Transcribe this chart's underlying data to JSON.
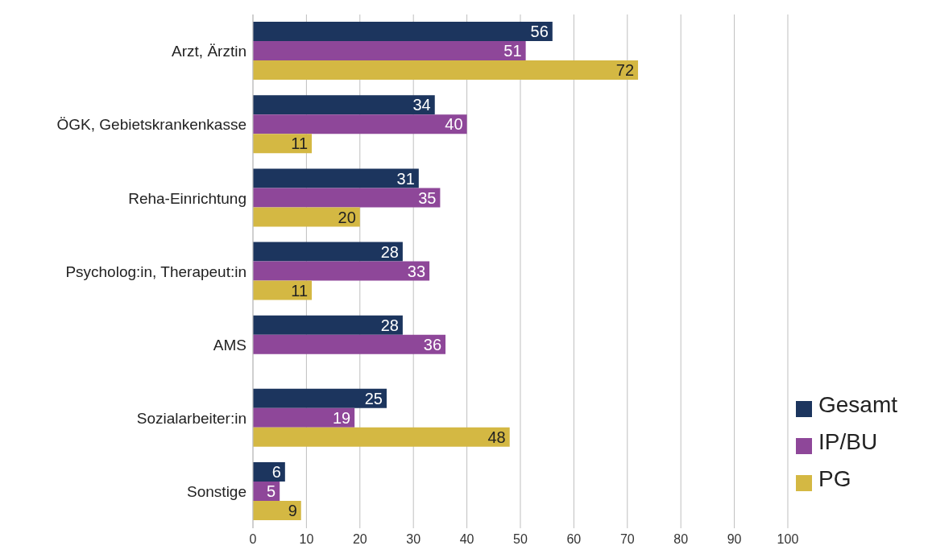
{
  "chart_data": {
    "type": "bar",
    "orientation": "horizontal",
    "categories": [
      "Arzt, Ärztin",
      "ÖGK, Gebietskrankenkasse",
      "Reha-Einrichtung",
      "Psycholog:in, Therapeut:in",
      "AMS",
      "Sozialarbeiter:in",
      "Sonstige"
    ],
    "series": [
      {
        "name": "Gesamt",
        "color": "#1c355e",
        "values": [
          56,
          34,
          31,
          28,
          28,
          25,
          6
        ]
      },
      {
        "name": "IP/BU",
        "color": "#8e4799",
        "values": [
          51,
          40,
          35,
          33,
          36,
          19,
          5
        ]
      },
      {
        "name": "PG",
        "color": "#d4b843",
        "values": [
          72,
          11,
          20,
          11,
          null,
          48,
          9
        ]
      }
    ],
    "xlim": [
      0,
      100
    ],
    "xticks": [
      0,
      10,
      20,
      30,
      40,
      50,
      60,
      70,
      80,
      90,
      100
    ],
    "grid": "x",
    "legend": "bottom right",
    "data_labels": true
  }
}
